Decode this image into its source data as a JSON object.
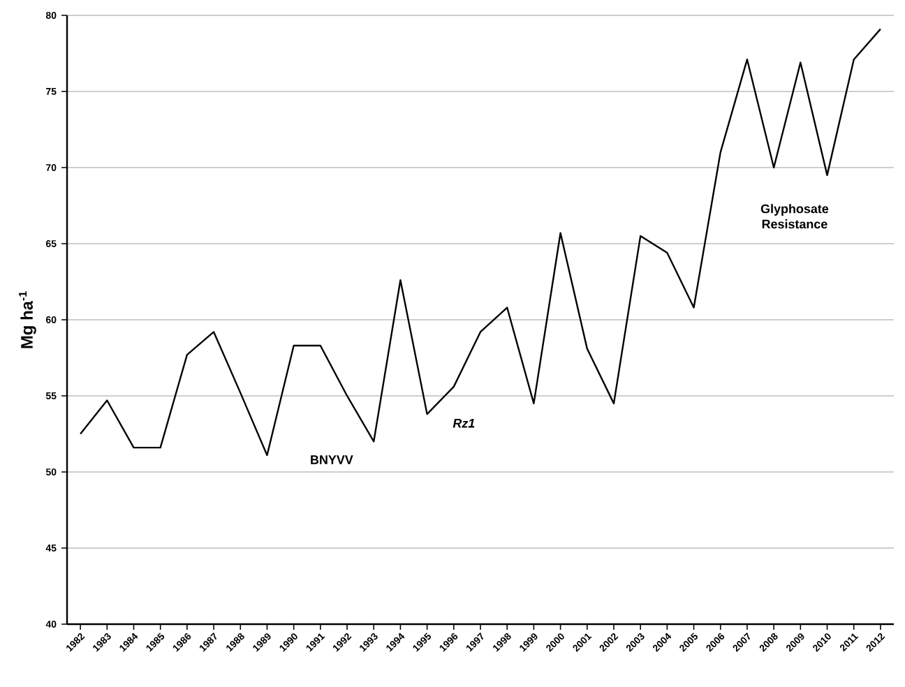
{
  "chart_data": {
    "type": "line",
    "ylabel": "Mg ha$^{-1}$",
    "categories": [
      "1982",
      "1983",
      "1984",
      "1985",
      "1986",
      "1987",
      "1988",
      "1989",
      "1990",
      "1991",
      "1992",
      "1993",
      "1994",
      "1995",
      "1996",
      "1997",
      "1998",
      "1999",
      "2000",
      "2001",
      "2002",
      "2003",
      "2004",
      "2005",
      "2006",
      "2007",
      "2008",
      "2009",
      "2010",
      "2011",
      "2012"
    ],
    "values": [
      52.5,
      54.7,
      51.6,
      51.6,
      57.7,
      59.2,
      55.2,
      51.1,
      58.3,
      58.3,
      55.0,
      52.0,
      62.6,
      53.8,
      55.6,
      59.2,
      60.8,
      54.5,
      65.7,
      58.1,
      54.5,
      65.5,
      64.4,
      60.8,
      71.0,
      77.1,
      70.0,
      76.9,
      69.5,
      77.1,
      79.1
    ],
    "color": "#000000",
    "ylim": [
      40,
      80
    ],
    "yticks": [
      40,
      45,
      50,
      55,
      60,
      65,
      70,
      75,
      80
    ],
    "grid": "y",
    "marker": "none",
    "line_style": "solid",
    "annotations": [
      "BNYVV",
      "*Rz1*",
      "Glyphosate Resistance"
    ]
  }
}
